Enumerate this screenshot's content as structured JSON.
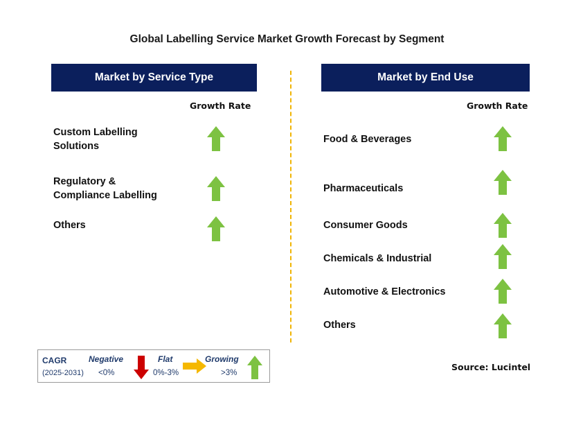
{
  "title": "Global Labelling Service Market Growth Forecast by Segment",
  "left_panel": {
    "header": "Market by Service Type",
    "growth_rate_label": "Growth Rate",
    "items": [
      {
        "line1": "Custom Labelling",
        "line2": "Solutions",
        "trend": "growing"
      },
      {
        "line1": "Regulatory &",
        "line2": "Compliance Labelling",
        "trend": "growing"
      },
      {
        "line1": "Others",
        "line2": "",
        "trend": "growing"
      }
    ]
  },
  "right_panel": {
    "header": "Market by End Use",
    "growth_rate_label": "Growth Rate",
    "items": [
      {
        "label": "Food & Beverages",
        "trend": "growing"
      },
      {
        "label": "Pharmaceuticals",
        "trend": "growing"
      },
      {
        "label": "Consumer Goods",
        "trend": "growing"
      },
      {
        "label": "Chemicals & Industrial",
        "trend": "growing"
      },
      {
        "label": "Automotive & Electronics",
        "trend": "growing"
      },
      {
        "label": "Others",
        "trend": "growing"
      }
    ]
  },
  "legend": {
    "cagr": "CAGR",
    "period": "(2025-2031)",
    "negative": {
      "label": "Negative",
      "value": "<0%"
    },
    "flat": {
      "label": "Flat",
      "value": "0%-3%"
    },
    "growing": {
      "label": "Growing",
      "value": ">3%"
    }
  },
  "source": "Source: Lucintel",
  "colors": {
    "header_bg": "#0b1f5c",
    "growing_arrow": "#7dc242",
    "negative_arrow": "#cc0000",
    "flat_arrow": "#f5b800",
    "divider": "#f0b400"
  }
}
